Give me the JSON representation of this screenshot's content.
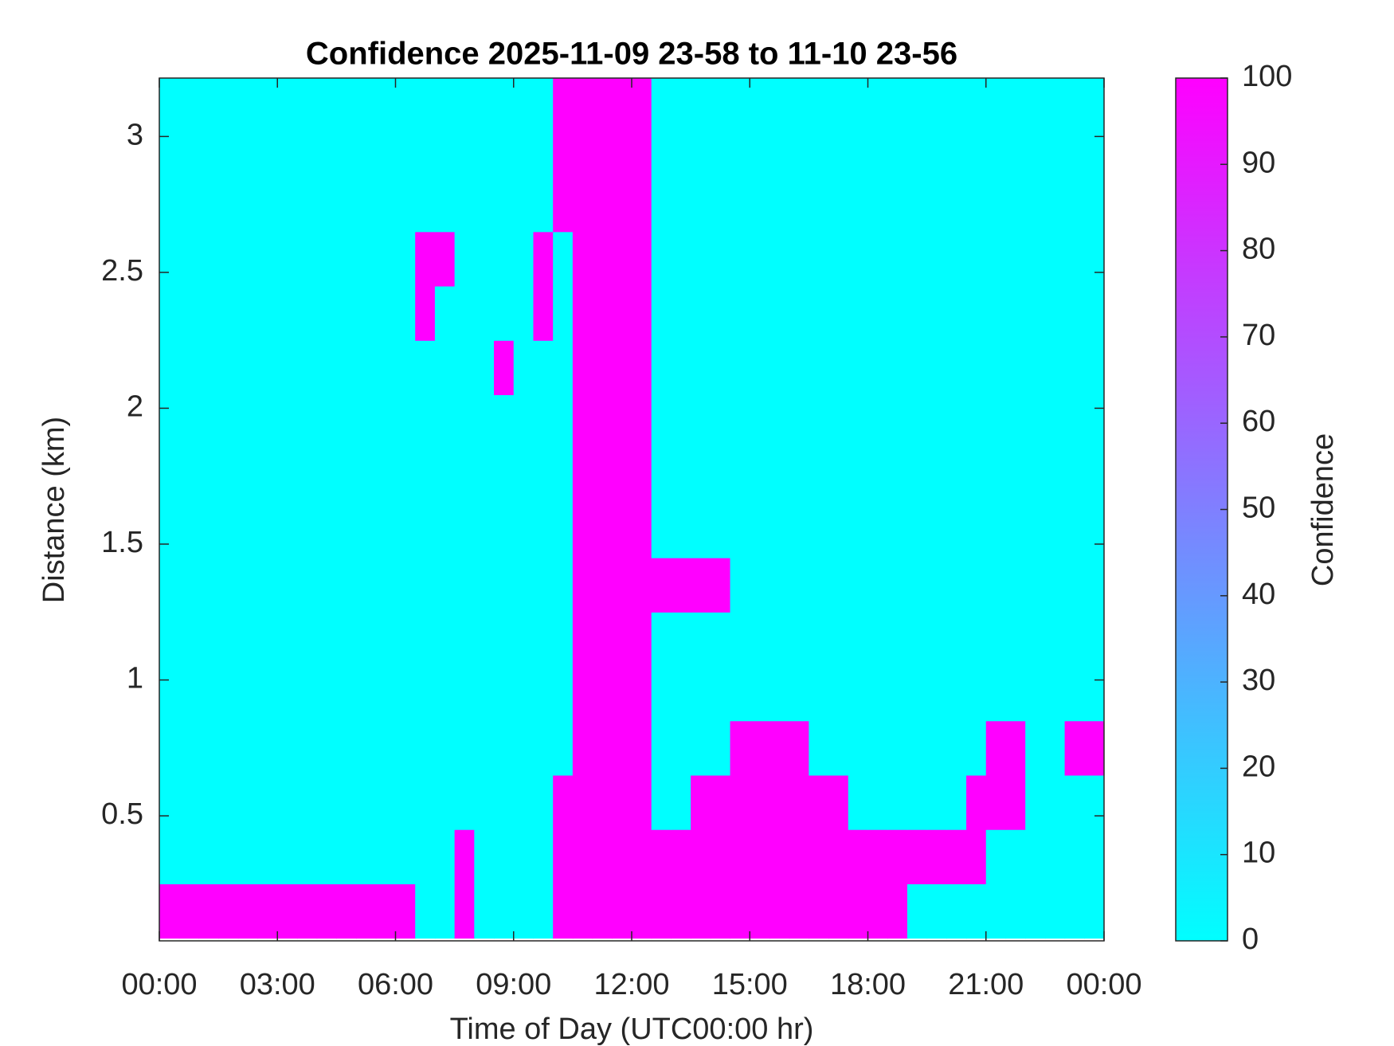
{
  "chart_data": {
    "type": "heatmap",
    "title": "Confidence 2025-11-09 23-58 to 11-10 23-56",
    "x_label": "Time of Day (UTC00:00 hr)",
    "y_label": "Distance (km)",
    "colorbar_label": "Confidence",
    "colormap": [
      "#00ffff",
      "#ff00ff"
    ],
    "clim": [
      0,
      100
    ],
    "cticks": [
      0,
      10,
      20,
      30,
      40,
      50,
      60,
      70,
      80,
      90,
      100
    ],
    "xlim": [
      0,
      24
    ],
    "xticks": [
      {
        "value": 0,
        "label": "00:00"
      },
      {
        "value": 3,
        "label": "03:00"
      },
      {
        "value": 6,
        "label": "06:00"
      },
      {
        "value": 9,
        "label": "09:00"
      },
      {
        "value": 12,
        "label": "12:00"
      },
      {
        "value": 15,
        "label": "15:00"
      },
      {
        "value": 18,
        "label": "18:00"
      },
      {
        "value": 21,
        "label": "21:00"
      },
      {
        "value": 24,
        "label": "00:00"
      }
    ],
    "ylim": [
      0.04,
      3.215
    ],
    "yticks": [
      0.5,
      1,
      1.5,
      2,
      2.5,
      3
    ],
    "x": [
      0.25,
      0.75,
      1.25,
      1.75,
      2.25,
      2.75,
      3.25,
      3.75,
      4.25,
      4.75,
      5.25,
      5.75,
      6.25,
      6.75,
      7.25,
      7.75,
      8.25,
      8.75,
      9.25,
      9.75,
      10.25,
      10.75,
      11.25,
      11.75,
      12.25,
      12.75,
      13.25,
      13.75,
      14.25,
      14.75,
      15.25,
      15.75,
      16.25,
      16.75,
      17.25,
      17.75,
      18.25,
      18.75,
      19.25,
      19.75,
      20.25,
      20.75,
      21.25,
      21.75,
      22.25,
      22.75,
      23.25,
      23.75
    ],
    "y": [
      0.15,
      0.35,
      0.55,
      0.75,
      0.95,
      1.15,
      1.35,
      1.55,
      1.75,
      1.95,
      2.15,
      2.35,
      2.55,
      2.75,
      2.95,
      3.15
    ],
    "z": [
      [
        100,
        100,
        100,
        100,
        100,
        100,
        100,
        100,
        100,
        100,
        100,
        100,
        100,
        0,
        0,
        100,
        0,
        0,
        0,
        0,
        100,
        100,
        100,
        100,
        100,
        100,
        100,
        100,
        100,
        100,
        100,
        100,
        100,
        100,
        100,
        100,
        100,
        100,
        0,
        0,
        0,
        0,
        0,
        0,
        0,
        0,
        0,
        0
      ],
      [
        0,
        0,
        0,
        0,
        0,
        0,
        0,
        0,
        0,
        0,
        0,
        0,
        0,
        0,
        0,
        100,
        0,
        0,
        0,
        0,
        100,
        100,
        100,
        100,
        100,
        100,
        100,
        100,
        100,
        100,
        100,
        100,
        100,
        100,
        100,
        100,
        100,
        100,
        100,
        100,
        100,
        100,
        0,
        0,
        0,
        0,
        0,
        0
      ],
      [
        0,
        0,
        0,
        0,
        0,
        0,
        0,
        0,
        0,
        0,
        0,
        0,
        0,
        0,
        0,
        0,
        0,
        0,
        0,
        0,
        100,
        100,
        100,
        100,
        100,
        0,
        0,
        100,
        100,
        100,
        100,
        100,
        100,
        100,
        100,
        0,
        0,
        0,
        0,
        0,
        0,
        100,
        100,
        100,
        0,
        0,
        0,
        0
      ],
      [
        0,
        0,
        0,
        0,
        0,
        0,
        0,
        0,
        0,
        0,
        0,
        0,
        0,
        0,
        0,
        0,
        0,
        0,
        0,
        0,
        0,
        100,
        100,
        100,
        100,
        0,
        0,
        0,
        0,
        100,
        100,
        100,
        100,
        0,
        0,
        0,
        0,
        0,
        0,
        0,
        0,
        0,
        100,
        100,
        0,
        0,
        100,
        100
      ],
      [
        0,
        0,
        0,
        0,
        0,
        0,
        0,
        0,
        0,
        0,
        0,
        0,
        0,
        0,
        0,
        0,
        0,
        0,
        0,
        0,
        0,
        100,
        100,
        100,
        100,
        0,
        0,
        0,
        0,
        0,
        0,
        0,
        0,
        0,
        0,
        0,
        0,
        0,
        0,
        0,
        0,
        0,
        0,
        0,
        0,
        0,
        0,
        0
      ],
      [
        0,
        0,
        0,
        0,
        0,
        0,
        0,
        0,
        0,
        0,
        0,
        0,
        0,
        0,
        0,
        0,
        0,
        0,
        0,
        0,
        0,
        100,
        100,
        100,
        100,
        0,
        0,
        0,
        0,
        0,
        0,
        0,
        0,
        0,
        0,
        0,
        0,
        0,
        0,
        0,
        0,
        0,
        0,
        0,
        0,
        0,
        0,
        0
      ],
      [
        0,
        0,
        0,
        0,
        0,
        0,
        0,
        0,
        0,
        0,
        0,
        0,
        0,
        0,
        0,
        0,
        0,
        0,
        0,
        0,
        0,
        100,
        100,
        100,
        100,
        100,
        100,
        100,
        100,
        0,
        0,
        0,
        0,
        0,
        0,
        0,
        0,
        0,
        0,
        0,
        0,
        0,
        0,
        0,
        0,
        0,
        0,
        0
      ],
      [
        0,
        0,
        0,
        0,
        0,
        0,
        0,
        0,
        0,
        0,
        0,
        0,
        0,
        0,
        0,
        0,
        0,
        0,
        0,
        0,
        0,
        100,
        100,
        100,
        100,
        0,
        0,
        0,
        0,
        0,
        0,
        0,
        0,
        0,
        0,
        0,
        0,
        0,
        0,
        0,
        0,
        0,
        0,
        0,
        0,
        0,
        0,
        0
      ],
      [
        0,
        0,
        0,
        0,
        0,
        0,
        0,
        0,
        0,
        0,
        0,
        0,
        0,
        0,
        0,
        0,
        0,
        0,
        0,
        0,
        0,
        100,
        100,
        100,
        100,
        0,
        0,
        0,
        0,
        0,
        0,
        0,
        0,
        0,
        0,
        0,
        0,
        0,
        0,
        0,
        0,
        0,
        0,
        0,
        0,
        0,
        0,
        0
      ],
      [
        0,
        0,
        0,
        0,
        0,
        0,
        0,
        0,
        0,
        0,
        0,
        0,
        0,
        0,
        0,
        0,
        0,
        0,
        0,
        0,
        0,
        100,
        100,
        100,
        100,
        0,
        0,
        0,
        0,
        0,
        0,
        0,
        0,
        0,
        0,
        0,
        0,
        0,
        0,
        0,
        0,
        0,
        0,
        0,
        0,
        0,
        0,
        0
      ],
      [
        0,
        0,
        0,
        0,
        0,
        0,
        0,
        0,
        0,
        0,
        0,
        0,
        0,
        0,
        0,
        0,
        0,
        100,
        0,
        0,
        0,
        100,
        100,
        100,
        100,
        0,
        0,
        0,
        0,
        0,
        0,
        0,
        0,
        0,
        0,
        0,
        0,
        0,
        0,
        0,
        0,
        0,
        0,
        0,
        0,
        0,
        0,
        0
      ],
      [
        0,
        0,
        0,
        0,
        0,
        0,
        0,
        0,
        0,
        0,
        0,
        0,
        0,
        100,
        0,
        0,
        0,
        0,
        0,
        100,
        0,
        100,
        100,
        100,
        100,
        0,
        0,
        0,
        0,
        0,
        0,
        0,
        0,
        0,
        0,
        0,
        0,
        0,
        0,
        0,
        0,
        0,
        0,
        0,
        0,
        0,
        0,
        0
      ],
      [
        0,
        0,
        0,
        0,
        0,
        0,
        0,
        0,
        0,
        0,
        0,
        0,
        0,
        100,
        100,
        0,
        0,
        0,
        0,
        100,
        0,
        100,
        100,
        100,
        100,
        0,
        0,
        0,
        0,
        0,
        0,
        0,
        0,
        0,
        0,
        0,
        0,
        0,
        0,
        0,
        0,
        0,
        0,
        0,
        0,
        0,
        0,
        0
      ],
      [
        0,
        0,
        0,
        0,
        0,
        0,
        0,
        0,
        0,
        0,
        0,
        0,
        0,
        0,
        0,
        0,
        0,
        0,
        0,
        0,
        100,
        100,
        100,
        100,
        100,
        0,
        0,
        0,
        0,
        0,
        0,
        0,
        0,
        0,
        0,
        0,
        0,
        0,
        0,
        0,
        0,
        0,
        0,
        0,
        0,
        0,
        0,
        0
      ],
      [
        0,
        0,
        0,
        0,
        0,
        0,
        0,
        0,
        0,
        0,
        0,
        0,
        0,
        0,
        0,
        0,
        0,
        0,
        0,
        0,
        100,
        100,
        100,
        100,
        100,
        0,
        0,
        0,
        0,
        0,
        0,
        0,
        0,
        0,
        0,
        0,
        0,
        0,
        0,
        0,
        0,
        0,
        0,
        0,
        0,
        0,
        0,
        0
      ],
      [
        0,
        0,
        0,
        0,
        0,
        0,
        0,
        0,
        0,
        0,
        0,
        0,
        0,
        0,
        0,
        0,
        0,
        0,
        0,
        0,
        100,
        100,
        100,
        100,
        100,
        0,
        0,
        0,
        0,
        0,
        0,
        0,
        0,
        0,
        0,
        0,
        0,
        0,
        0,
        0,
        0,
        0,
        0,
        0,
        0,
        0,
        0,
        0
      ]
    ]
  }
}
